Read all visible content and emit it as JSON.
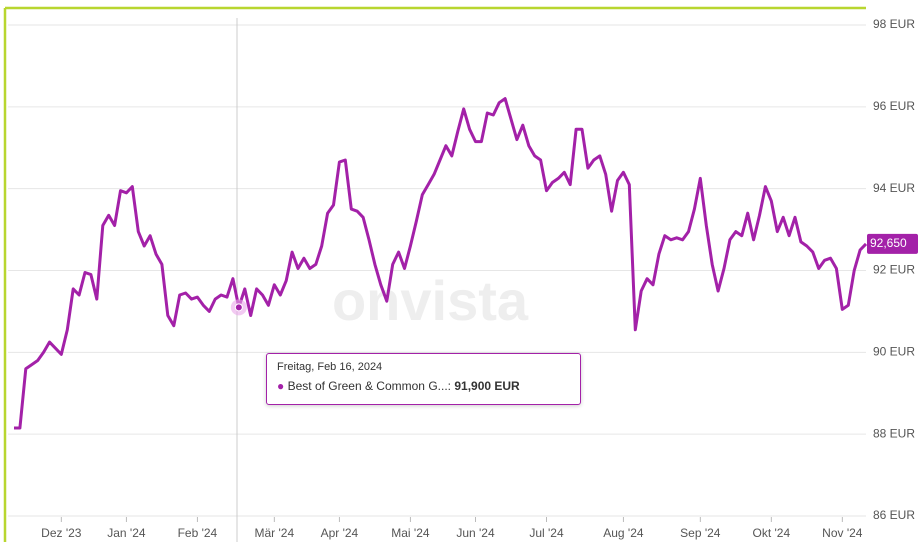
{
  "chart_data": {
    "type": "line",
    "watermark": "onvista",
    "categories": [
      null,
      null,
      null,
      null,
      null,
      null,
      null,
      null,
      "Dez '23",
      null,
      null,
      null,
      null,
      null,
      null,
      null,
      null,
      null,
      null,
      "Jan '24",
      null,
      null,
      null,
      null,
      null,
      null,
      null,
      null,
      null,
      null,
      null,
      "Feb '24",
      null,
      null,
      null,
      null,
      null,
      null,
      null,
      null,
      null,
      null,
      null,
      null,
      "Mär '24",
      null,
      null,
      null,
      null,
      null,
      null,
      null,
      null,
      null,
      null,
      "Apr '24",
      null,
      null,
      null,
      null,
      null,
      null,
      null,
      null,
      null,
      null,
      null,
      "Mai '24",
      null,
      null,
      null,
      null,
      null,
      null,
      null,
      null,
      null,
      null,
      "Jun '24",
      null,
      null,
      null,
      null,
      null,
      null,
      null,
      null,
      null,
      null,
      null,
      "Jul '24",
      null,
      null,
      null,
      null,
      null,
      null,
      null,
      null,
      null,
      null,
      null,
      null,
      "Aug '24",
      null,
      null,
      null,
      null,
      null,
      null,
      null,
      null,
      null,
      null,
      null,
      null,
      "Sep '24",
      null,
      null,
      null,
      null,
      null,
      null,
      null,
      null,
      null,
      null,
      null,
      "Okt '24",
      null,
      null,
      null,
      null,
      null,
      null,
      null,
      null,
      null,
      null,
      null,
      "Nov '24",
      null,
      null,
      null,
      null
    ],
    "series": [
      {
        "color": "#a321a8",
        "values": [
          88.15,
          88.15,
          89.6,
          89.7,
          89.8,
          90.0,
          90.25,
          90.1,
          89.95,
          90.55,
          91.55,
          91.4,
          91.95,
          91.9,
          91.3,
          93.1,
          93.35,
          93.1,
          93.95,
          93.9,
          94.05,
          92.95,
          92.6,
          92.85,
          92.4,
          92.15,
          90.9,
          90.65,
          91.4,
          91.45,
          91.3,
          91.35,
          91.15,
          91.0,
          91.3,
          91.4,
          91.35,
          91.8,
          91.1,
          91.55,
          90.9,
          91.55,
          91.4,
          91.15,
          91.65,
          91.4,
          91.75,
          92.45,
          92.05,
          92.3,
          92.05,
          92.15,
          92.6,
          93.4,
          93.6,
          94.65,
          94.7,
          93.5,
          93.45,
          93.3,
          92.75,
          92.15,
          91.65,
          91.25,
          92.15,
          92.45,
          92.05,
          92.6,
          93.2,
          93.85,
          94.1,
          94.35,
          94.7,
          95.05,
          94.8,
          95.4,
          95.95,
          95.45,
          95.15,
          95.15,
          95.85,
          95.8,
          96.1,
          96.2,
          95.7,
          95.2,
          95.55,
          95.05,
          94.8,
          94.7,
          93.95,
          94.15,
          94.25,
          94.4,
          94.1,
          95.45,
          95.45,
          94.5,
          94.7,
          94.8,
          94.35,
          93.45,
          94.2,
          94.4,
          94.1,
          90.55,
          91.5,
          91.8,
          91.65,
          92.4,
          92.85,
          92.75,
          92.8,
          92.75,
          92.95,
          93.5,
          94.25,
          93.1,
          92.15,
          91.5,
          92.05,
          92.75,
          92.95,
          92.85,
          93.4,
          92.75,
          93.35,
          94.05,
          93.7,
          92.95,
          93.3,
          92.85,
          93.3,
          92.7,
          92.6,
          92.45,
          92.05,
          92.25,
          92.3,
          92.05,
          91.05,
          91.15,
          92.0,
          92.5,
          92.65
        ]
      }
    ],
    "end_label": "92,650",
    "ylim": [
      86,
      98
    ],
    "yticks": [
      {
        "value": 86,
        "label": "86 EUR"
      },
      {
        "value": 88,
        "label": "88 EUR"
      },
      {
        "value": 90,
        "label": "90 EUR"
      },
      {
        "value": 92,
        "label": "92 EUR"
      },
      {
        "value": 94,
        "label": "94 EUR"
      },
      {
        "value": 96,
        "label": "96 EUR"
      },
      {
        "value": 98,
        "label": "98 EUR"
      }
    ],
    "grid": true,
    "tooltip": {
      "date": "Freitag, Feb 16, 2024",
      "label": "Best of Green & Common G...:",
      "value": "91,900 EUR"
    }
  }
}
